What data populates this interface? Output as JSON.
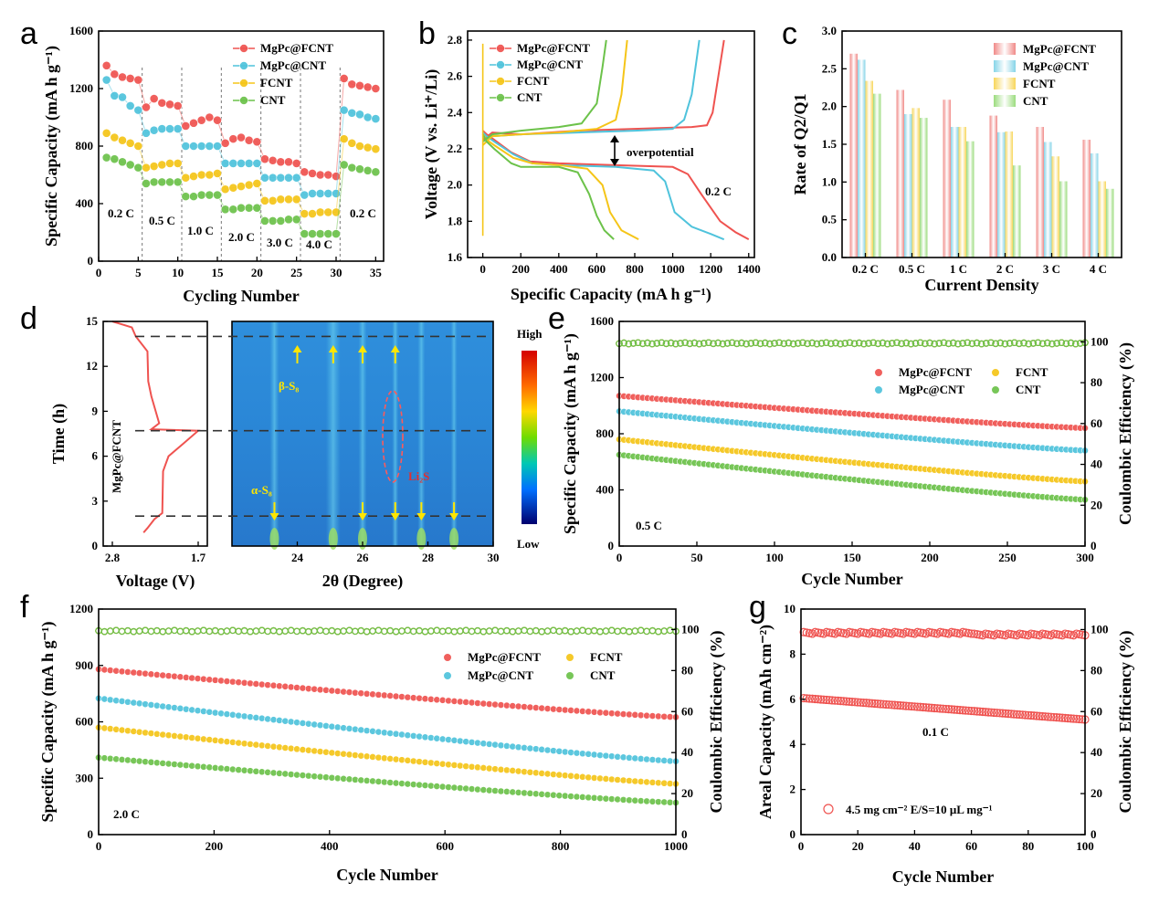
{
  "colors": {
    "MgPc@FCNT": "#ef5350",
    "MgPc@CNT": "#4fc3dc",
    "FCNT": "#f5c518",
    "CNT": "#6cc24a"
  },
  "chart_data": [
    {
      "id": "a",
      "panel_letter": "a",
      "type": "scatter",
      "xlabel": "Cycling Number",
      "ylabel": "Specific Capacity (mA h g⁻¹)",
      "xlim": [
        0,
        36
      ],
      "ylim": [
        0,
        1600
      ],
      "xticks": [
        0,
        5,
        10,
        15,
        20,
        25,
        30,
        35
      ],
      "yticks": [
        0,
        400,
        800,
        1200,
        1600
      ],
      "legend": [
        "MgPc@FCNT",
        "MgPc@CNT",
        "FCNT",
        "CNT"
      ],
      "legend_position": "top-right",
      "rate_labels": [
        "0.2 C",
        "0.5 C",
        "1.0 C",
        "2.0 C",
        "3.0 C",
        "4.0 C",
        "0.2 C"
      ],
      "series": [
        {
          "name": "MgPc@FCNT",
          "values": [
            1360,
            1300,
            1280,
            1270,
            1260,
            1070,
            1130,
            1100,
            1090,
            1080,
            940,
            960,
            980,
            1000,
            980,
            820,
            850,
            860,
            840,
            830,
            710,
            700,
            690,
            690,
            680,
            620,
            610,
            600,
            600,
            590,
            1270,
            1230,
            1220,
            1210,
            1200
          ]
        },
        {
          "name": "MgPc@CNT",
          "values": [
            1260,
            1150,
            1140,
            1080,
            1050,
            890,
            910,
            920,
            920,
            920,
            800,
            800,
            800,
            800,
            800,
            680,
            680,
            680,
            680,
            680,
            580,
            580,
            580,
            580,
            580,
            460,
            470,
            470,
            470,
            470,
            1050,
            1030,
            1020,
            1000,
            990
          ]
        },
        {
          "name": "FCNT",
          "values": [
            890,
            860,
            840,
            820,
            800,
            650,
            660,
            670,
            680,
            680,
            580,
            590,
            600,
            600,
            610,
            500,
            510,
            520,
            530,
            540,
            420,
            420,
            430,
            430,
            430,
            330,
            330,
            340,
            340,
            340,
            850,
            820,
            800,
            790,
            780
          ]
        },
        {
          "name": "CNT",
          "values": [
            720,
            710,
            690,
            670,
            650,
            540,
            550,
            550,
            550,
            550,
            450,
            450,
            460,
            460,
            460,
            360,
            360,
            370,
            370,
            370,
            280,
            280,
            280,
            290,
            290,
            190,
            190,
            190,
            190,
            190,
            670,
            650,
            640,
            630,
            620
          ]
        }
      ]
    },
    {
      "id": "b",
      "panel_letter": "b",
      "type": "line",
      "xlabel": "Specific Capacity (mA h g⁻¹)",
      "ylabel": "Voltage (V vs. Li⁺/Li)",
      "xlim": [
        -80,
        1430
      ],
      "ylim": [
        1.6,
        2.85
      ],
      "xticks": [
        0,
        200,
        400,
        600,
        800,
        1000,
        1200,
        1400
      ],
      "yticks": [
        1.6,
        1.8,
        2.0,
        2.2,
        2.4,
        2.6,
        2.8
      ],
      "legend": [
        "MgPc@FCNT",
        "MgPc@CNT",
        "FCNT",
        "CNT"
      ],
      "legend_position": "top-left",
      "annotations": [
        "overpotential",
        "0.2 C"
      ],
      "series": [
        {
          "name": "MgPc@FCNT",
          "discharge": [
            [
              0,
              2.3
            ],
            [
              20,
              2.28
            ],
            [
              60,
              2.25
            ],
            [
              150,
              2.18
            ],
            [
              250,
              2.13
            ],
            [
              400,
              2.12
            ],
            [
              700,
              2.11
            ],
            [
              1000,
              2.1
            ],
            [
              1080,
              2.06
            ],
            [
              1150,
              1.95
            ],
            [
              1250,
              1.8
            ],
            [
              1330,
              1.74
            ],
            [
              1400,
              1.7
            ]
          ],
          "charge": [
            [
              0,
              2.25
            ],
            [
              50,
              2.29
            ],
            [
              200,
              2.28
            ],
            [
              500,
              2.3
            ],
            [
              800,
              2.31
            ],
            [
              1100,
              2.32
            ],
            [
              1180,
              2.33
            ],
            [
              1210,
              2.4
            ],
            [
              1240,
              2.6
            ],
            [
              1270,
              2.8
            ]
          ]
        },
        {
          "name": "MgPc@CNT",
          "discharge": [
            [
              0,
              2.29
            ],
            [
              20,
              2.27
            ],
            [
              60,
              2.24
            ],
            [
              160,
              2.17
            ],
            [
              260,
              2.12
            ],
            [
              400,
              2.11
            ],
            [
              700,
              2.1
            ],
            [
              900,
              2.08
            ],
            [
              960,
              2.02
            ],
            [
              1010,
              1.85
            ],
            [
              1100,
              1.77
            ],
            [
              1200,
              1.73
            ],
            [
              1270,
              1.7
            ]
          ],
          "charge": [
            [
              0,
              2.24
            ],
            [
              50,
              2.27
            ],
            [
              200,
              2.28
            ],
            [
              500,
              2.29
            ],
            [
              800,
              2.3
            ],
            [
              1000,
              2.31
            ],
            [
              1060,
              2.36
            ],
            [
              1100,
              2.5
            ],
            [
              1140,
              2.8
            ]
          ]
        },
        {
          "name": "FCNT",
          "discharge": [
            [
              0,
              2.28
            ],
            [
              20,
              2.25
            ],
            [
              60,
              2.22
            ],
            [
              160,
              2.15
            ],
            [
              260,
              2.12
            ],
            [
              400,
              2.11
            ],
            [
              550,
              2.09
            ],
            [
              630,
              2.0
            ],
            [
              670,
              1.85
            ],
            [
              730,
              1.75
            ],
            [
              820,
              1.7
            ]
          ],
          "charge": [
            [
              0,
              2.22
            ],
            [
              50,
              2.27
            ],
            [
              200,
              2.28
            ],
            [
              400,
              2.29
            ],
            [
              600,
              2.31
            ],
            [
              700,
              2.36
            ],
            [
              730,
              2.5
            ],
            [
              760,
              2.8
            ]
          ]
        },
        {
          "name": "CNT",
          "discharge": [
            [
              0,
              2.28
            ],
            [
              20,
              2.24
            ],
            [
              60,
              2.2
            ],
            [
              150,
              2.12
            ],
            [
              200,
              2.1
            ],
            [
              400,
              2.1
            ],
            [
              500,
              2.07
            ],
            [
              560,
              1.95
            ],
            [
              600,
              1.83
            ],
            [
              640,
              1.75
            ],
            [
              690,
              1.7
            ]
          ],
          "charge": [
            [
              0,
              2.24
            ],
            [
              50,
              2.28
            ],
            [
              200,
              2.3
            ],
            [
              400,
              2.32
            ],
            [
              520,
              2.34
            ],
            [
              600,
              2.45
            ],
            [
              630,
              2.65
            ],
            [
              650,
              2.8
            ]
          ]
        }
      ]
    },
    {
      "id": "c",
      "panel_letter": "c",
      "type": "bar",
      "xlabel": "Current Density",
      "ylabel": "Rate of Q2/Q1",
      "categories": [
        "0.2 C",
        "0.5 C",
        "1 C",
        "2 C",
        "3 C",
        "4 C"
      ],
      "ylim": [
        0,
        3.0
      ],
      "yticks": [
        0.0,
        0.5,
        1.0,
        1.5,
        2.0,
        2.5,
        3.0
      ],
      "legend": [
        "MgPc@FCNT",
        "MgPc@CNT",
        "FCNT",
        "CNT"
      ],
      "legend_position": "top-right",
      "series": [
        {
          "name": "MgPc@FCNT",
          "values": [
            2.7,
            2.22,
            2.09,
            1.88,
            1.73,
            1.56
          ]
        },
        {
          "name": "MgPc@CNT",
          "values": [
            2.62,
            1.9,
            1.73,
            1.66,
            1.53,
            1.38
          ]
        },
        {
          "name": "FCNT",
          "values": [
            2.34,
            1.98,
            1.73,
            1.67,
            1.34,
            1.01
          ]
        },
        {
          "name": "CNT",
          "values": [
            2.17,
            1.85,
            1.54,
            1.22,
            1.01,
            0.91
          ]
        }
      ]
    },
    {
      "id": "d-left",
      "panel_letter": "d",
      "type": "line",
      "xlabel": "Voltage (V)",
      "ylabel": "Time (h)",
      "xlim": [
        2.8,
        1.7
      ],
      "ylim": [
        0,
        15
      ],
      "xticks": [
        2.8,
        1.7
      ],
      "yticks": [
        0,
        3,
        6,
        9,
        12,
        15
      ],
      "series_label": "MgPc@FCNT",
      "series": [
        {
          "name": "MgPc@FCNT",
          "points": [
            [
              2.8,
              15
            ],
            [
              2.55,
              14.6
            ],
            [
              2.5,
              14.0
            ],
            [
              2.35,
              13.0
            ],
            [
              2.34,
              11.0
            ],
            [
              2.3,
              10.0
            ],
            [
              2.2,
              8.2
            ],
            [
              2.3,
              7.8
            ],
            [
              1.7,
              7.7
            ],
            [
              1.9,
              6.8
            ],
            [
              2.08,
              6.0
            ],
            [
              2.15,
              5.0
            ],
            [
              2.16,
              2.2
            ],
            [
              2.26,
              1.8
            ],
            [
              2.35,
              1.2
            ],
            [
              2.4,
              0.9
            ]
          ]
        }
      ]
    },
    {
      "id": "d-map",
      "type": "heatmap",
      "xlabel": "2θ (Degree)",
      "xlim": [
        22,
        30
      ],
      "xticks": [
        24,
        26,
        28,
        30
      ],
      "colorbar_labels": [
        "High",
        "Low"
      ],
      "annotations": [
        "β-S₈",
        "α-S₈",
        "Li₂S"
      ],
      "dashed_lines_time_h": [
        14.0,
        7.7,
        2.0
      ]
    },
    {
      "id": "e",
      "panel_letter": "e",
      "type": "scatter",
      "xlabel": "Cycle Number",
      "ylabel": "Specific Capacity (mA h g⁻¹)",
      "y2label": "Coulombic Efficiency (%)",
      "xlim": [
        0,
        300
      ],
      "ylim": [
        0,
        1600
      ],
      "y2lim": [
        0,
        110
      ],
      "xticks": [
        0,
        50,
        100,
        150,
        200,
        250,
        300
      ],
      "yticks": [
        0,
        400,
        800,
        1200,
        1600
      ],
      "y2ticks": [
        0,
        20,
        40,
        60,
        80,
        100
      ],
      "rate_label": "0.5 C",
      "legend": [
        "MgPc@FCNT",
        "FCNT",
        "MgPc@CNT",
        "CNT"
      ],
      "legend_position": "top-right",
      "series": [
        {
          "name": "MgPc@FCNT",
          "start": 1070,
          "end": 840
        },
        {
          "name": "MgPc@CNT",
          "start": 960,
          "end": 680
        },
        {
          "name": "FCNT",
          "start": 760,
          "end": 460
        },
        {
          "name": "CNT",
          "start": 650,
          "end": 330
        }
      ],
      "coulombic_efficiency": 99
    },
    {
      "id": "f",
      "panel_letter": "f",
      "type": "scatter",
      "xlabel": "Cycle Number",
      "ylabel": "Specific Capacity (mA h g⁻¹)",
      "y2label": "Coulombic Efficiency (%)",
      "xlim": [
        0,
        1000
      ],
      "ylim": [
        0,
        1200
      ],
      "y2lim": [
        0,
        110
      ],
      "xticks": [
        0,
        200,
        400,
        600,
        800,
        1000
      ],
      "yticks": [
        0,
        300,
        600,
        900,
        1200
      ],
      "y2ticks": [
        0,
        20,
        40,
        60,
        80,
        100
      ],
      "rate_label": "2.0 C",
      "legend": [
        "MgPc@FCNT",
        "FCNT",
        "MgPc@CNT",
        "CNT"
      ],
      "legend_position": "top-right",
      "series": [
        {
          "name": "MgPc@FCNT",
          "start": 880,
          "end": 625
        },
        {
          "name": "MgPc@CNT",
          "start": 725,
          "end": 390
        },
        {
          "name": "FCNT",
          "start": 570,
          "end": 270
        },
        {
          "name": "CNT",
          "start": 410,
          "end": 170
        }
      ],
      "coulombic_efficiency": 99
    },
    {
      "id": "g",
      "panel_letter": "g",
      "type": "scatter",
      "xlabel": "Cycle Number",
      "ylabel": "Areal Capacity (mAh cm⁻²)",
      "y2label": "Coulombic Efficiency (%)",
      "xlim": [
        0,
        100
      ],
      "ylim": [
        0,
        10
      ],
      "y2lim": [
        0,
        110
      ],
      "xticks": [
        0,
        20,
        40,
        60,
        80,
        100
      ],
      "yticks": [
        0,
        2,
        4,
        6,
        8,
        10
      ],
      "y2ticks": [
        0,
        20,
        40,
        60,
        80,
        100
      ],
      "rate_label": "0.1 C",
      "legend": [
        "4.5 mg cm⁻²    E/S=10 μL mg⁻¹"
      ],
      "legend_position": "bottom-left",
      "series": [
        {
          "name": "4.5 mg cm⁻²    E/S=10 μL mg⁻¹",
          "start": 6.05,
          "end": 5.1
        }
      ],
      "coulombic_efficiency": 98
    }
  ]
}
